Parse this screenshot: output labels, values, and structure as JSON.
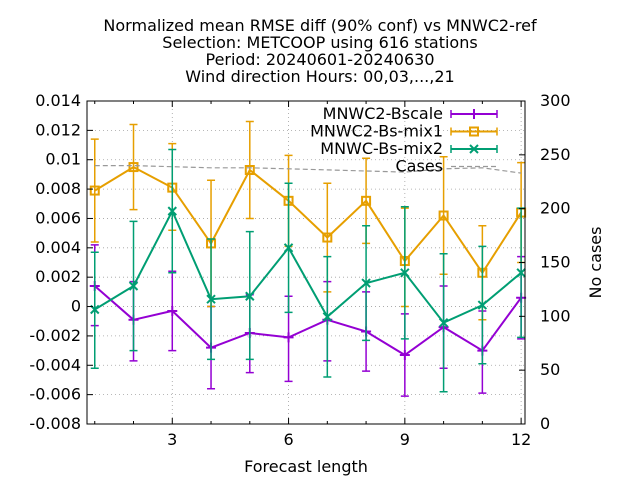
{
  "chart_data": {
    "type": "line",
    "title_lines": [
      "Normalized mean RMSE diff (90% conf) vs MNWC2-ref",
      "Selection: METCOOP using   616 stations",
      "Period: 20240601-20240630",
      "Wind direction   Hours: 00,03,...,21"
    ],
    "xlabel": "Forecast length",
    "ylabel": "",
    "y2label": "No cases",
    "xlim": [
      0.8,
      12.1
    ],
    "ylim": [
      -0.008,
      0.014
    ],
    "y2lim": [
      0,
      300
    ],
    "x_ticks": [
      3,
      6,
      9,
      12
    ],
    "y_ticks": [
      -0.008,
      -0.006,
      -0.004,
      -0.002,
      0,
      0.002,
      0.004,
      0.006,
      0.008,
      0.01,
      0.012,
      0.014
    ],
    "y_tick_labels": [
      "-0.008",
      "-0.006",
      "-0.004",
      "-0.002",
      "0",
      "0.002",
      "0.004",
      "0.006",
      "0.008",
      "0.01",
      "0.012",
      "0.014"
    ],
    "y2_ticks": [
      0,
      50,
      100,
      150,
      200,
      250,
      300
    ],
    "grid": true,
    "legend_position": "top-right",
    "series": [
      {
        "name": "MNWC2-Bscale",
        "color": "#9400d3",
        "marker": "plus",
        "axis": "y",
        "x": [
          1,
          2,
          3,
          4,
          5,
          6,
          7,
          8,
          9,
          10,
          11,
          12
        ],
        "y": [
          0.0014,
          -0.0009,
          -0.0003,
          -0.0028,
          -0.0018,
          -0.0021,
          -0.0009,
          -0.0017,
          -0.0033,
          -0.0014,
          -0.003,
          0.0006
        ],
        "low": [
          -0.0013,
          -0.0037,
          -0.003,
          -0.0056,
          -0.0045,
          -0.0051,
          -0.0037,
          -0.0044,
          -0.0061,
          -0.0042,
          -0.0059,
          -0.0022
        ],
        "high": [
          0.0042,
          0.0017,
          0.0024,
          0.0,
          0.0008,
          0.0007,
          0.0017,
          0.001,
          -0.0005,
          0.0014,
          -0.0003,
          0.0034
        ]
      },
      {
        "name": "MNWC2-Bs-mix1",
        "color": "#e69f00",
        "marker": "square",
        "axis": "y",
        "x": [
          1,
          2,
          3,
          4,
          5,
          6,
          7,
          8,
          9,
          10,
          11,
          12
        ],
        "y": [
          0.0079,
          0.0095,
          0.0081,
          0.0043,
          0.0093,
          0.0072,
          0.0047,
          0.0072,
          0.0031,
          0.0062,
          0.0023,
          0.0064
        ],
        "low": [
          0.0044,
          0.0066,
          0.0052,
          0.0,
          0.006,
          0.0041,
          0.001,
          0.0043,
          0.0,
          0.0022,
          -0.0009,
          0.003
        ],
        "high": [
          0.0114,
          0.0124,
          0.0111,
          0.0086,
          0.0126,
          0.0103,
          0.0084,
          0.0101,
          0.0067,
          0.0102,
          0.0055,
          0.0098
        ]
      },
      {
        "name": "MNWC-Bs-mix2",
        "color": "#009e73",
        "marker": "x",
        "axis": "y",
        "x": [
          1,
          2,
          3,
          4,
          5,
          6,
          7,
          8,
          9,
          10,
          11,
          12
        ],
        "y": [
          -0.0002,
          0.0014,
          0.0065,
          0.0005,
          0.0007,
          0.004,
          -0.0007,
          0.0016,
          0.0023,
          -0.0011,
          0.0001,
          0.0023
        ],
        "low": [
          -0.0042,
          -0.003,
          0.0023,
          -0.0036,
          -0.0036,
          -0.0004,
          -0.0048,
          -0.0023,
          -0.0022,
          -0.0058,
          -0.0039,
          -0.0021
        ],
        "high": [
          0.0037,
          0.0058,
          0.0107,
          0.0046,
          0.0051,
          0.0084,
          0.0034,
          0.0055,
          0.0068,
          0.0036,
          0.0041,
          0.0067
        ]
      },
      {
        "name": "Cases",
        "color": "#999999",
        "marker": "none",
        "dashed": true,
        "axis": "y2",
        "x": [
          1,
          2,
          3,
          4,
          5,
          6,
          7,
          8,
          9,
          10,
          11,
          12
        ],
        "y": [
          240,
          240,
          239,
          238,
          238,
          237,
          236,
          235,
          234,
          237,
          238,
          233
        ]
      }
    ]
  }
}
